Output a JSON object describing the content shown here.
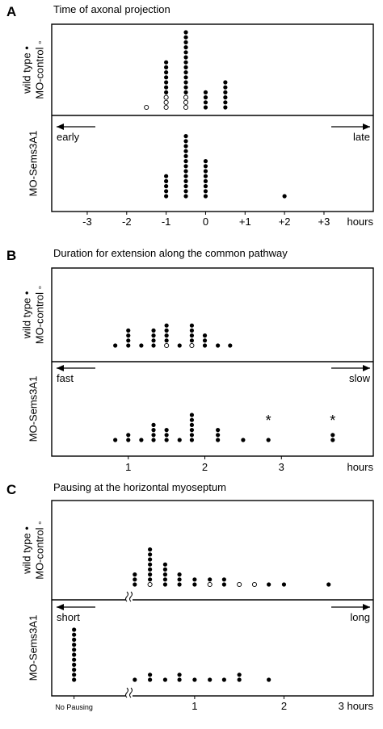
{
  "chart_data": [
    {
      "type": "scatter",
      "panel_letter": "A",
      "title": "Time of axonal projection",
      "xlabel": "hours",
      "xlim": [
        -3.9,
        4.25
      ],
      "x_ticks": [
        {
          "value": -3,
          "label": "-3"
        },
        {
          "value": -2,
          "label": "-2"
        },
        {
          "value": -1,
          "label": "-1"
        },
        {
          "value": 0,
          "label": "0"
        },
        {
          "value": 1,
          "label": "+1"
        },
        {
          "value": 2,
          "label": "+2"
        },
        {
          "value": 3,
          "label": "+3"
        }
      ],
      "direction_labels": {
        "left": "early",
        "right": "late"
      },
      "rows": [
        {
          "label_lines": [
            "wild type •",
            "MO-control ◦"
          ],
          "dot_columns": [
            {
              "x": -1.5,
              "filled": 0,
              "open": 1
            },
            {
              "x": -1.0,
              "filled": 7,
              "open": 3
            },
            {
              "x": -0.5,
              "filled": 13,
              "open": 3
            },
            {
              "x": 0.0,
              "filled": 4,
              "open": 0
            },
            {
              "x": 0.5,
              "filled": 6,
              "open": 0
            }
          ]
        },
        {
          "label_lines": [
            "MO-Sems3A1"
          ],
          "dot_columns": [
            {
              "x": -1.0,
              "filled": 5,
              "open": 0
            },
            {
              "x": -0.5,
              "filled": 13,
              "open": 0
            },
            {
              "x": 0.0,
              "filled": 8,
              "open": 0
            },
            {
              "x": 2.0,
              "filled": 1,
              "open": 0
            }
          ]
        }
      ]
    },
    {
      "type": "scatter",
      "panel_letter": "B",
      "title": "Duration for extension along the common pathway",
      "xlabel": "hours",
      "xlim": [
        0.0,
        4.2
      ],
      "x_ticks": [
        {
          "value": 1,
          "label": "1"
        },
        {
          "value": 2,
          "label": "2"
        },
        {
          "value": 3,
          "label": "3"
        }
      ],
      "direction_labels": {
        "left": "fast",
        "right": "slow"
      },
      "rows": [
        {
          "label_lines": [
            "wild type •",
            "MO-control ◦"
          ],
          "dot_columns": [
            {
              "x": 0.83,
              "filled": 1,
              "open": 0
            },
            {
              "x": 1.0,
              "filled": 4,
              "open": 0
            },
            {
              "x": 1.17,
              "filled": 1,
              "open": 0
            },
            {
              "x": 1.33,
              "filled": 4,
              "open": 0
            },
            {
              "x": 1.5,
              "filled": 4,
              "open": 1
            },
            {
              "x": 1.67,
              "filled": 1,
              "open": 0
            },
            {
              "x": 1.83,
              "filled": 4,
              "open": 1
            },
            {
              "x": 2.0,
              "filled": 3,
              "open": 0
            },
            {
              "x": 2.17,
              "filled": 1,
              "open": 0
            },
            {
              "x": 2.33,
              "filled": 1,
              "open": 0
            }
          ]
        },
        {
          "label_lines": [
            "MO-Sems3A1"
          ],
          "dot_columns": [
            {
              "x": 0.83,
              "filled": 1,
              "open": 0
            },
            {
              "x": 1.0,
              "filled": 2,
              "open": 0
            },
            {
              "x": 1.17,
              "filled": 1,
              "open": 0
            },
            {
              "x": 1.33,
              "filled": 4,
              "open": 0
            },
            {
              "x": 1.5,
              "filled": 3,
              "open": 0
            },
            {
              "x": 1.67,
              "filled": 1,
              "open": 0
            },
            {
              "x": 1.83,
              "filled": 6,
              "open": 0
            },
            {
              "x": 2.17,
              "filled": 3,
              "open": 0
            },
            {
              "x": 2.5,
              "filled": 1,
              "open": 0
            },
            {
              "x": 2.83,
              "filled": 1,
              "open": 0
            },
            {
              "x": 3.67,
              "filled": 2,
              "open": 0
            }
          ],
          "annotations": [
            {
              "x": 2.83,
              "text": "*"
            },
            {
              "x": 3.67,
              "text": "*"
            }
          ]
        }
      ]
    },
    {
      "type": "scatter",
      "panel_letter": "C",
      "title": "Pausing at the horizontal myoseptum",
      "xlabel": "3 hours",
      "xlim": [
        -0.6,
        3.0
      ],
      "axis_break_x": 0.17,
      "x_ticks": [
        {
          "value": -0.35,
          "label": "No Pausing"
        },
        {
          "value": 1,
          "label": "1"
        },
        {
          "value": 2,
          "label": "2"
        }
      ],
      "direction_labels": {
        "left": "short",
        "right": "long"
      },
      "rows": [
        {
          "label_lines": [
            "wild type •",
            "MO-control ◦"
          ],
          "dot_columns": [
            {
              "x": 0.33,
              "filled": 3,
              "open": 0
            },
            {
              "x": 0.5,
              "filled": 7,
              "open": 1
            },
            {
              "x": 0.67,
              "filled": 5,
              "open": 0
            },
            {
              "x": 0.83,
              "filled": 3,
              "open": 0
            },
            {
              "x": 1.0,
              "filled": 2,
              "open": 0
            },
            {
              "x": 1.17,
              "filled": 1,
              "open": 1
            },
            {
              "x": 1.33,
              "filled": 2,
              "open": 0
            },
            {
              "x": 1.5,
              "filled": 0,
              "open": 1
            },
            {
              "x": 1.67,
              "filled": 0,
              "open": 1
            },
            {
              "x": 1.83,
              "filled": 1,
              "open": 0
            },
            {
              "x": 2.0,
              "filled": 1,
              "open": 0
            },
            {
              "x": 2.5,
              "filled": 1,
              "open": 0
            }
          ]
        },
        {
          "label_lines": [
            "MO-Sems3A1"
          ],
          "dot_columns": [
            {
              "x": -0.35,
              "filled": 11,
              "open": 0
            },
            {
              "x": 0.33,
              "filled": 1,
              "open": 0
            },
            {
              "x": 0.5,
              "filled": 2,
              "open": 0
            },
            {
              "x": 0.67,
              "filled": 1,
              "open": 0
            },
            {
              "x": 0.83,
              "filled": 2,
              "open": 0
            },
            {
              "x": 1.0,
              "filled": 1,
              "open": 0
            },
            {
              "x": 1.17,
              "filled": 1,
              "open": 0
            },
            {
              "x": 1.33,
              "filled": 1,
              "open": 0
            },
            {
              "x": 1.5,
              "filled": 2,
              "open": 0
            },
            {
              "x": 1.83,
              "filled": 1,
              "open": 0
            }
          ]
        }
      ]
    }
  ]
}
